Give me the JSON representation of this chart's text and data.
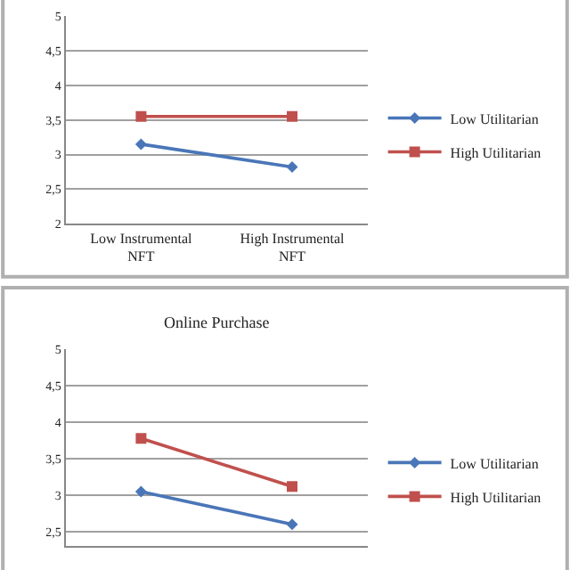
{
  "chart_data": [
    {
      "type": "line",
      "categories": [
        "Low Instrumental\nNFT",
        "High Instrumental\nNFT"
      ],
      "legend": "right",
      "grid": "y",
      "ylim": [
        2,
        5
      ],
      "yticks": [
        2,
        {
          "value": 2.5,
          "label": "2,5"
        },
        3,
        {
          "value": 3.5,
          "label": "3,5"
        },
        4,
        {
          "value": 4.5,
          "label": "4,5"
        },
        5
      ],
      "series": [
        {
          "name": "Low Utilitarian",
          "color": "#4a76b8",
          "values": [
            3.15,
            2.82
          ],
          "marker": "diamond"
        },
        {
          "name": "High Utilitarian",
          "color": "#c0504d",
          "values": [
            3.55,
            3.55
          ],
          "marker": "square"
        }
      ]
    },
    {
      "type": "line",
      "title": "Online Purchase",
      "categories": [
        null,
        null
      ],
      "tick_labels": "y",
      "legend": "right",
      "grid": "y",
      "ylim": [
        2.3,
        5
      ],
      "yticks": [
        {
          "value": 2.5,
          "label": "2,5"
        },
        3,
        {
          "value": 3.5,
          "label": "3,5"
        },
        4,
        {
          "value": 4.5,
          "label": "4,5"
        },
        5
      ],
      "series": [
        {
          "name": "Low Utilitarian",
          "color": "#4a76b8",
          "values": [
            3.05,
            2.6
          ],
          "marker": "diamond"
        },
        {
          "name": "High Utilitarian",
          "color": "#c0504d",
          "values": [
            3.78,
            3.12
          ],
          "marker": "square"
        }
      ]
    }
  ]
}
